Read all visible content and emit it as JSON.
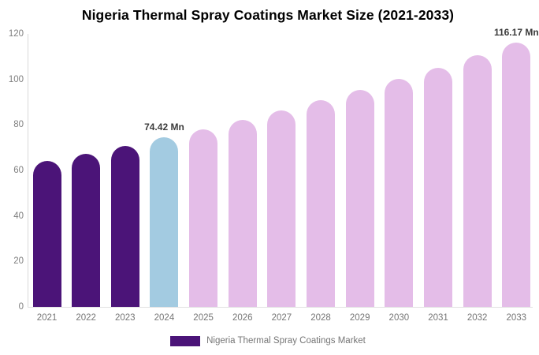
{
  "chart_data": {
    "type": "bar",
    "title": "Nigeria Thermal Spray Coatings Market Size (2021-2033)",
    "xlabel": "",
    "ylabel": "",
    "ylim": [
      0,
      120
    ],
    "yticks": [
      0,
      20,
      40,
      60,
      80,
      100,
      120
    ],
    "grid": false,
    "legend_position": "bottom",
    "categories": [
      "2021",
      "2022",
      "2023",
      "2024",
      "2025",
      "2026",
      "2027",
      "2028",
      "2029",
      "2030",
      "2031",
      "2032",
      "2033"
    ],
    "values": [
      64.2,
      67.4,
      70.8,
      74.42,
      78.2,
      82.1,
      86.3,
      90.7,
      95.3,
      100.1,
      105.2,
      110.5,
      116.17
    ],
    "bar_groups": [
      "historical",
      "historical",
      "historical",
      "base_year",
      "forecast",
      "forecast",
      "forecast",
      "forecast",
      "forecast",
      "forecast",
      "forecast",
      "forecast",
      "forecast"
    ],
    "colors": {
      "historical": "#4B1478",
      "base_year": "#A3CBE1",
      "forecast": "#E4BDE8"
    },
    "value_labels": [
      {
        "category": "2024",
        "text": "74.42 Mn"
      },
      {
        "category": "2033",
        "text": "116.17 Mn"
      }
    ],
    "legend": [
      {
        "label": "Nigeria Thermal Spray Coatings Market",
        "color": "#4B1478"
      }
    ],
    "text_colors": {
      "title": "#000000",
      "axis_ticks": "#7f7f7f",
      "value_labels": "#3b3b3b",
      "legend": "#757575"
    }
  }
}
